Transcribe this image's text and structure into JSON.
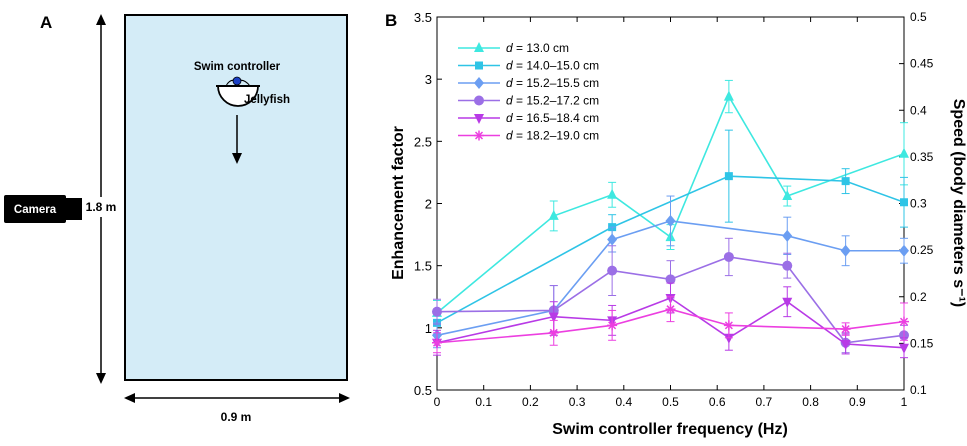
{
  "panel_a": {
    "letter": "A",
    "swim_controller_label": "Swim controller",
    "jellyfish_label": "Jellyfish",
    "camera_label": "Camera",
    "height_label": "1.8 m",
    "width_label": "0.9 m",
    "tank_color": "#d4ecf7"
  },
  "chart_data": {
    "type": "line",
    "panel_letter": "B",
    "xlabel": "Swim controller frequency (Hz)",
    "ylabel": "Enhancement factor",
    "y2label": "Speed (body diameters s⁻¹)",
    "xlim": [
      0,
      1
    ],
    "ylim": [
      0.5,
      3.5
    ],
    "y2lim": [
      0.1,
      0.5
    ],
    "x_ticks": [
      "0",
      "0.1",
      "0.2",
      "0.3",
      "0.4",
      "0.5",
      "0.6",
      "0.7",
      "0.8",
      "0.9",
      "1"
    ],
    "y_ticks": [
      "0.5",
      "1",
      "1.5",
      "2",
      "2.5",
      "3",
      "3.5"
    ],
    "y2_ticks": [
      "0.1",
      "0.15",
      "0.2",
      "0.25",
      "0.3",
      "0.35",
      "0.4",
      "0.45",
      "0.5"
    ],
    "legend_position": "top-left",
    "grid": false,
    "series": [
      {
        "name": "d = 13.0 cm",
        "name_italic": "d",
        "name_rest": " = 13.0 cm",
        "color": "#3ee8e0",
        "marker": "triangle-up",
        "x": [
          0,
          0.25,
          0.375,
          0.5,
          0.625,
          0.75,
          1
        ],
        "y": [
          1.12,
          1.9,
          2.07,
          1.73,
          2.86,
          2.06,
          2.4
        ],
        "err": [
          0.1,
          0.12,
          0.1,
          0.1,
          0.13,
          0.08,
          0.25
        ]
      },
      {
        "name": "d = 14.0–15.0 cm",
        "name_italic": "d",
        "name_rest": " = 14.0–15.0 cm",
        "color": "#2ec4e6",
        "marker": "square",
        "x": [
          0,
          0.375,
          0.625,
          0.875,
          1
        ],
        "y": [
          1.04,
          1.81,
          2.22,
          2.18,
          2.01
        ],
        "err": [
          0.1,
          0.1,
          0.37,
          0.1,
          0.2
        ]
      },
      {
        "name": "d = 15.2–15.5 cm",
        "name_italic": "d",
        "name_rest": " = 15.2–15.5 cm",
        "color": "#6b9ef2",
        "marker": "diamond",
        "x": [
          0,
          0.25,
          0.375,
          0.5,
          0.75,
          0.875,
          1
        ],
        "y": [
          0.94,
          1.14,
          1.71,
          1.86,
          1.74,
          1.62,
          1.62
        ],
        "err": [
          0.1,
          0.2,
          0.1,
          0.2,
          0.15,
          0.12,
          0.1
        ]
      },
      {
        "name": "d = 15.2–17.2 cm",
        "name_italic": "d",
        "name_rest": " = 15.2–17.2 cm",
        "color": "#9b6fe6",
        "marker": "circle",
        "x": [
          0,
          0.25,
          0.375,
          0.5,
          0.625,
          0.75,
          0.875,
          1
        ],
        "y": [
          1.13,
          1.14,
          1.46,
          1.39,
          1.57,
          1.5,
          0.88,
          0.94
        ],
        "err": [
          0.1,
          0.2,
          0.2,
          0.15,
          0.15,
          0.1,
          0.08,
          0.08
        ]
      },
      {
        "name": "d = 16.5–18.4 cm",
        "name_italic": "d",
        "name_rest": " = 16.5–18.4 cm",
        "color": "#b83ae6",
        "marker": "triangle-down",
        "x": [
          0,
          0.25,
          0.375,
          0.5,
          0.625,
          0.75,
          0.875,
          1
        ],
        "y": [
          0.88,
          1.09,
          1.06,
          1.24,
          0.92,
          1.21,
          0.87,
          0.84
        ],
        "err": [
          0.1,
          0.12,
          0.12,
          0.12,
          0.1,
          0.12,
          0.08,
          0.08
        ]
      },
      {
        "name": "d = 18.2–19.0 cm",
        "name_italic": "d",
        "name_rest": " = 18.2–19.0 cm",
        "color": "#ec3fe0",
        "marker": "asterisk",
        "x": [
          0,
          0.25,
          0.375,
          0.5,
          0.625,
          0.875,
          1
        ],
        "y": [
          0.88,
          0.96,
          1.02,
          1.15,
          1.02,
          0.99,
          1.05
        ],
        "err": [
          0.08,
          0.1,
          0.12,
          0.1,
          0.1,
          0.05,
          0.15
        ]
      }
    ]
  }
}
